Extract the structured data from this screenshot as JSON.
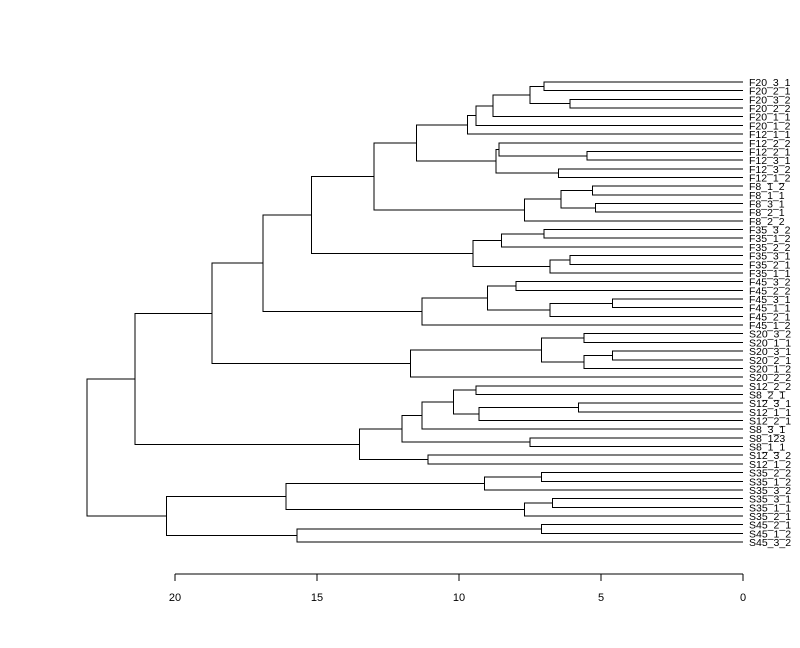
{
  "chart_data": {
    "type": "dendrogram",
    "title": "",
    "xlabel": "",
    "ylabel": "",
    "orientation": "horizontal",
    "xlim": [
      20,
      0
    ],
    "x_ticks": [
      20,
      15,
      10,
      5,
      0
    ],
    "x_tick_labels": [
      "20",
      "15",
      "10",
      "5",
      "0"
    ],
    "leaves": [
      "F20_3_1",
      "F20_2_1",
      "F20_3_2",
      "F20_2_2",
      "F20_1_1",
      "F20_1_2",
      "F12_1_1",
      "F12_2_2",
      "F12_2_1",
      "F12_3_1",
      "F12_3_2",
      "F12_1_2",
      "F8_1_2",
      "F8_1_1",
      "F8_3_1",
      "F8_2_1",
      "F8_2_2",
      "F35_3_2",
      "F35_1_2",
      "F35_2_2",
      "F35_3_1",
      "F35_2_1",
      "F35_1_1",
      "F45_3_2",
      "F45_2_2",
      "F45_3_1",
      "F45_1_1",
      "F45_2_1",
      "F45_1_2",
      "S20_3_2",
      "S20_1_1",
      "S20_3_1",
      "S20_2_1",
      "S20_1_2",
      "S20_2_2",
      "S12_2_2",
      "S8_2_1",
      "S12_3_1",
      "S12_1_1",
      "S12_2_1",
      "S8_3_1",
      "S8_123",
      "S8_1_1",
      "S12_3_2",
      "S12_1_2",
      "S35_2_2",
      "S35_1_2",
      "S35_3_2",
      "S35_3_1",
      "S35_1_1",
      "S35_2_1",
      "S45_2_1",
      "S45_1_2",
      "S45_3_2"
    ],
    "merges": [
      {
        "a": "F20_3_1",
        "b": "F20_2_1",
        "height": 7.0
      },
      {
        "a": "F20_3_2",
        "b": "F20_2_2",
        "height": 6.1
      },
      {
        "a": 0,
        "b": 1,
        "height": 7.5
      },
      {
        "a": 2,
        "b": "F20_1_1",
        "height": 8.8
      },
      {
        "a": 3,
        "b": "F20_1_2",
        "height": 9.4
      },
      {
        "a": "F12_1_1",
        "b": 4,
        "height": 9.7
      },
      {
        "a": "F12_2_1",
        "b": "F12_3_1",
        "height": 5.5
      },
      {
        "a": "F12_2_2",
        "b": 6,
        "height": 8.6
      },
      {
        "a": "F12_3_2",
        "b": "F12_1_2",
        "height": 6.5
      },
      {
        "a": 7,
        "b": 8,
        "height": 8.7
      },
      {
        "a": 5,
        "b": 9,
        "height": 11.5
      },
      {
        "a": "F8_1_2",
        "b": "F8_1_1",
        "height": 5.3
      },
      {
        "a": "F8_3_1",
        "b": "F8_2_1",
        "height": 5.2
      },
      {
        "a": 11,
        "b": 12,
        "height": 6.4
      },
      {
        "a": 13,
        "b": "F8_2_2",
        "height": 7.7
      },
      {
        "a": 10,
        "b": 14,
        "height": 13.0
      },
      {
        "a": "F35_3_2",
        "b": "F35_1_2",
        "height": 7.0
      },
      {
        "a": 16,
        "b": "F35_2_2",
        "height": 8.5
      },
      {
        "a": "F35_3_1",
        "b": "F35_2_1",
        "height": 6.1
      },
      {
        "a": 18,
        "b": "F35_1_1",
        "height": 6.8
      },
      {
        "a": 17,
        "b": 19,
        "height": 9.5
      },
      {
        "a": 15,
        "b": 20,
        "height": 15.2
      },
      {
        "a": "F45_3_2",
        "b": "F45_2_2",
        "height": 8.0
      },
      {
        "a": "F45_3_1",
        "b": "F45_1_1",
        "height": 4.6
      },
      {
        "a": 23,
        "b": "F45_2_1",
        "height": 6.8
      },
      {
        "a": 22,
        "b": 24,
        "height": 9.0
      },
      {
        "a": 25,
        "b": "F45_1_2",
        "height": 11.3
      },
      {
        "a": 21,
        "b": 26,
        "height": 16.9
      },
      {
        "a": "S20_3_2",
        "b": "S20_1_1",
        "height": 5.6
      },
      {
        "a": "S20_3_1",
        "b": "S20_2_1",
        "height": 4.6
      },
      {
        "a": 29,
        "b": "S20_1_2",
        "height": 5.6
      },
      {
        "a": 28,
        "b": 30,
        "height": 7.1
      },
      {
        "a": 31,
        "b": "S20_2_2",
        "height": 11.7
      },
      {
        "a": 27,
        "b": 32,
        "height": 18.7
      },
      {
        "a": "S12_2_2",
        "b": "S8_2_1",
        "height": 9.4
      },
      {
        "a": "S12_3_1",
        "b": "S12_1_1",
        "height": 5.8
      },
      {
        "a": 35,
        "b": "S12_2_1",
        "height": 9.3
      },
      {
        "a": 34,
        "b": 36,
        "height": 10.2
      },
      {
        "a": 37,
        "b": "S8_3_1",
        "height": 11.3
      },
      {
        "a": "S8_123",
        "b": "S8_1_1",
        "height": 7.5
      },
      {
        "a": 38,
        "b": 39,
        "height": 12.0
      },
      {
        "a": "S12_3_2",
        "b": "S12_1_2",
        "height": 11.1
      },
      {
        "a": 40,
        "b": 41,
        "height": 13.5
      },
      {
        "a": 33,
        "b": 42,
        "height": 21.4
      },
      {
        "a": "S35_2_2",
        "b": "S35_1_2",
        "height": 7.1
      },
      {
        "a": 44,
        "b": "S35_3_2",
        "height": 9.1
      },
      {
        "a": "S35_3_1",
        "b": "S35_1_1",
        "height": 6.7
      },
      {
        "a": 46,
        "b": "S35_2_1",
        "height": 7.7
      },
      {
        "a": 45,
        "b": 47,
        "height": 16.1
      },
      {
        "a": "S45_2_1",
        "b": "S45_1_2",
        "height": 7.1
      },
      {
        "a": 49,
        "b": "S45_3_2",
        "height": 15.7
      },
      {
        "a": 48,
        "b": 50,
        "height": 20.3
      },
      {
        "a": 43,
        "b": 51,
        "height": 23.1
      }
    ]
  }
}
